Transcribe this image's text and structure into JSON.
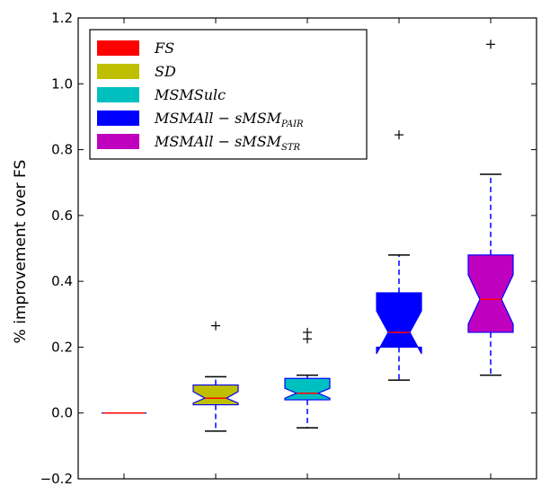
{
  "chart_data": {
    "type": "box",
    "ylabel": "% improvement over FS",
    "ylim": [
      -0.2,
      1.2
    ],
    "yticks": [
      -0.2,
      0.0,
      0.2,
      0.4,
      0.6,
      0.8,
      1.0,
      1.2
    ],
    "ytick_labels": [
      "−0.2",
      "0.0",
      "0.2",
      "0.4",
      "0.6",
      "0.8",
      "1.0",
      "1.2"
    ],
    "xtick_labels": [],
    "legend_position": "top-left",
    "legend": [
      {
        "base": "FS",
        "sub": "",
        "color": "#ff0000"
      },
      {
        "base": "SD",
        "sub": "",
        "color": "#bfbf00"
      },
      {
        "base": "MSMSulc",
        "sub": "",
        "color": "#00bfbf"
      },
      {
        "base": "MSMAll − sMSM",
        "sub": "PAIR",
        "color": "#0000ff"
      },
      {
        "base": "MSMAll − sMSM",
        "sub": "STR",
        "color": "#bf00bf"
      }
    ],
    "series": [
      {
        "name": "FS",
        "color": "#ff0000",
        "whisker_low": 0.0,
        "q1": 0.0,
        "median": 0.0,
        "q3": 0.0,
        "whisker_high": 0.0,
        "notch_low": 0.0,
        "notch_high": 0.0,
        "outliers": []
      },
      {
        "name": "SD",
        "color": "#bfbf00",
        "whisker_low": -0.055,
        "q1": 0.025,
        "median": 0.045,
        "q3": 0.085,
        "whisker_high": 0.11,
        "notch_low": 0.03,
        "notch_high": 0.065,
        "outliers": [
          0.265
        ]
      },
      {
        "name": "MSMSulc",
        "color": "#00bfbf",
        "whisker_low": -0.045,
        "q1": 0.04,
        "median": 0.06,
        "q3": 0.105,
        "whisker_high": 0.115,
        "notch_low": 0.045,
        "notch_high": 0.075,
        "outliers": [
          0.225,
          0.245
        ]
      },
      {
        "name": "MSMAll − sMSM PAIR",
        "color": "#0000ff",
        "whisker_low": 0.1,
        "q1": 0.2,
        "median": 0.245,
        "q3": 0.365,
        "whisker_high": 0.48,
        "notch_low": 0.18,
        "notch_high": 0.31,
        "outliers": [
          0.845
        ]
      },
      {
        "name": "MSMAll − sMSM STR",
        "color": "#bf00bf",
        "whisker_low": 0.115,
        "q1": 0.245,
        "median": 0.345,
        "q3": 0.48,
        "whisker_high": 0.725,
        "notch_low": 0.27,
        "notch_high": 0.42,
        "outliers": [
          1.12
        ]
      }
    ]
  }
}
